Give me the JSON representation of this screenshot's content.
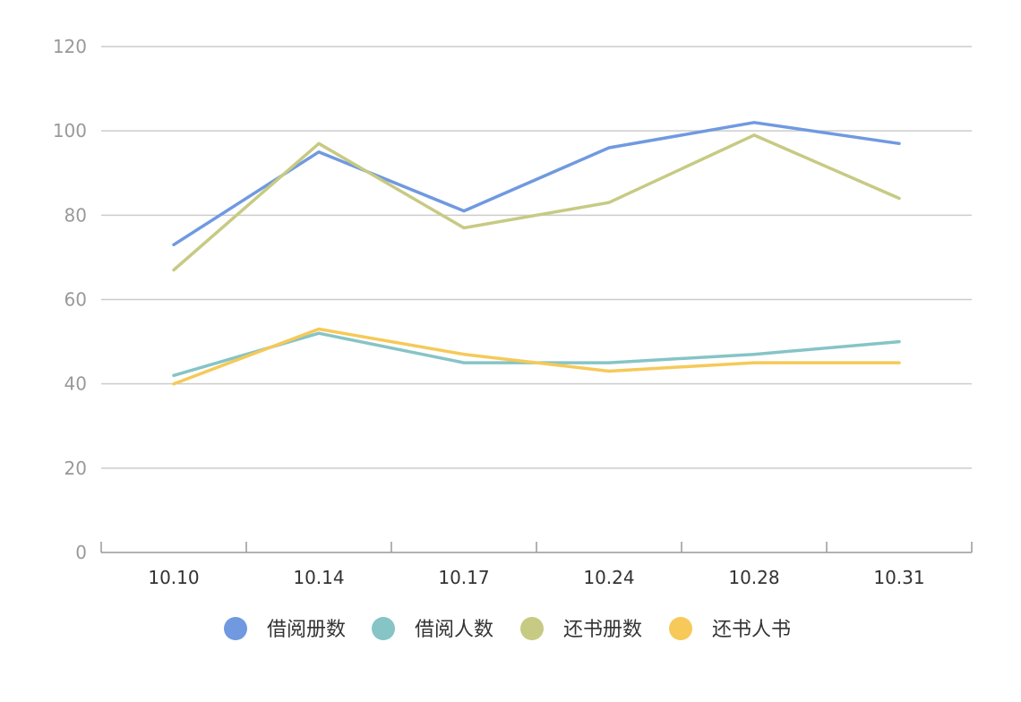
{
  "chart_data": {
    "type": "line",
    "title": "",
    "xlabel": "",
    "ylabel": "",
    "ylim": [
      0,
      120
    ],
    "yticks": [
      0,
      20,
      40,
      60,
      80,
      100,
      120
    ],
    "grid": true,
    "legend_position": "bottom",
    "categories": [
      "10.10",
      "10.14",
      "10.17",
      "10.24",
      "10.28",
      "10.31"
    ],
    "series": [
      {
        "name": "借阅册数",
        "color": "#7099e0",
        "values": [
          73,
          95,
          81,
          96,
          102,
          97
        ]
      },
      {
        "name": "借阅人数",
        "color": "#86c4c6",
        "values": [
          42,
          52,
          45,
          45,
          47,
          50
        ]
      },
      {
        "name": "还书册数",
        "color": "#c7ca83",
        "values": [
          67,
          97,
          77,
          83,
          99,
          84
        ]
      },
      {
        "name": "还书人书",
        "color": "#f6c958",
        "values": [
          40,
          53,
          47,
          43,
          45,
          45
        ]
      }
    ]
  }
}
